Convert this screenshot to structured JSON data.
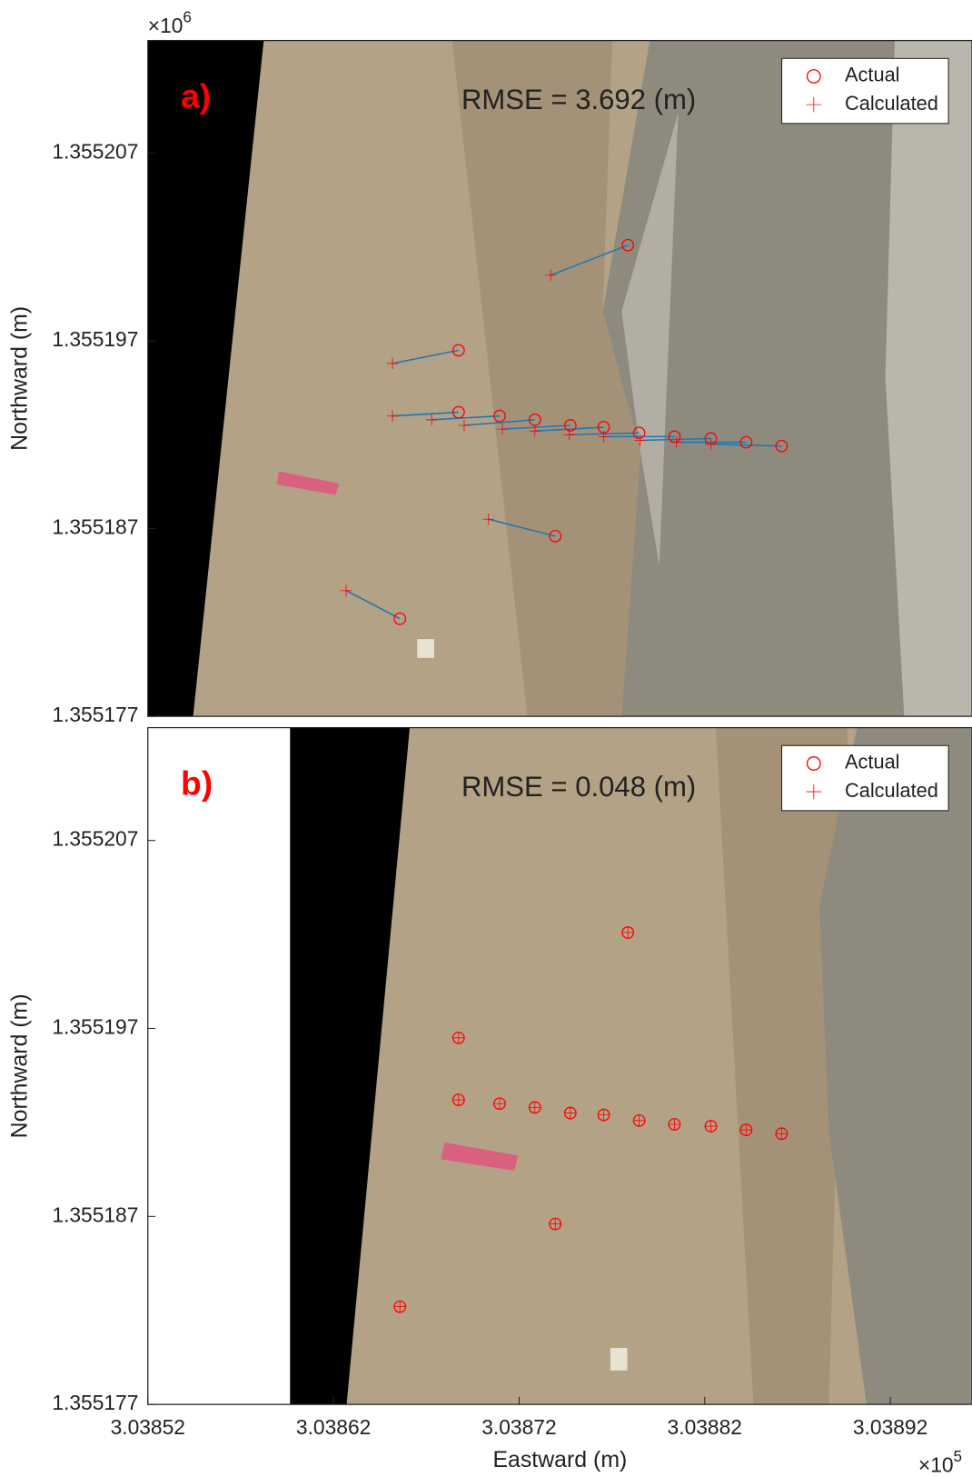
{
  "chart_data": [
    {
      "type": "scatter",
      "panel_label": "a)",
      "title": "RMSE = 3.692 (m)",
      "y_label": "Northward (m)",
      "y_multiplier": {
        "base": "×10",
        "exponent": "6"
      },
      "xlim": [
        3.03852,
        3.038964
      ],
      "ylim": [
        1.355177,
        1.355213
      ],
      "yticks": [
        1.355177,
        1.355187,
        1.355197,
        1.355207
      ],
      "legend": "upper right",
      "error_line_color": "#1f77b4",
      "series": [
        {
          "name": "Actual",
          "color": "#ff0000",
          "marker": "circle",
          "x": [
            3.0387786,
            3.0386874,
            3.0386874,
            3.0387095,
            3.0387285,
            3.0387476,
            3.0387656,
            3.0387847,
            3.0388037,
            3.0388233,
            3.0388423,
            3.0388614,
            3.0387395,
            3.0386558
          ],
          "values": [
            1.3552021,
            1.3551965,
            1.3551932,
            1.355193,
            1.3551928,
            1.3551925,
            1.3551924,
            1.3551921,
            1.3551919,
            1.3551918,
            1.3551916,
            1.3551914,
            1.3551866,
            1.3551822
          ]
        },
        {
          "name": "Calculated",
          "color": "#ff0000",
          "marker": "plus",
          "x": [
            3.038737,
            3.0386518,
            3.0386518,
            3.0386729,
            3.0386904,
            3.038711,
            3.0387285,
            3.0387471,
            3.0387656,
            3.0387852,
            3.0388047,
            3.0388233,
            3.0387035,
            3.0386268
          ],
          "values": [
            1.3552005,
            1.3551958,
            1.355193,
            1.3551928,
            1.3551925,
            1.3551923,
            1.3551922,
            1.355192,
            1.3551919,
            1.3551917,
            1.3551916,
            1.3551915,
            1.3551875,
            1.3551837
          ]
        }
      ]
    },
    {
      "type": "scatter",
      "panel_label": "b)",
      "title": "RMSE = 0.048 (m)",
      "y_label": "Northward (m)",
      "x_label": "Eastward (m)",
      "x_multiplier": {
        "base": "×10",
        "exponent": "5"
      },
      "xlim": [
        3.03852,
        3.038964
      ],
      "ylim": [
        1.355177,
        1.355213
      ],
      "xticks": [
        3.03852,
        3.03862,
        3.03872,
        3.03882,
        3.03892
      ],
      "yticks": [
        1.355177,
        1.355187,
        1.355197,
        1.355207
      ],
      "legend": "upper right",
      "error_line_color": "#1f77b4",
      "series": [
        {
          "name": "Actual",
          "color": "#ff0000",
          "marker": "circle",
          "x": [
            3.0387786,
            3.0386874,
            3.0386874,
            3.0387095,
            3.0387285,
            3.0387476,
            3.0387656,
            3.0387847,
            3.0388037,
            3.0388233,
            3.0388423,
            3.0388614,
            3.0387395,
            3.0386558
          ],
          "values": [
            1.3552021,
            1.3551965,
            1.3551932,
            1.355193,
            1.3551928,
            1.3551925,
            1.3551924,
            1.3551921,
            1.3551919,
            1.3551918,
            1.3551916,
            1.3551914,
            1.3551866,
            1.3551822
          ]
        },
        {
          "name": "Calculated",
          "color": "#ff0000",
          "marker": "plus",
          "x": [
            3.0387786,
            3.0386874,
            3.0386874,
            3.0387095,
            3.0387285,
            3.0387476,
            3.0387656,
            3.0387847,
            3.0388037,
            3.0388233,
            3.0388423,
            3.0388614,
            3.0387395,
            3.0386558
          ],
          "values": [
            1.3552021,
            1.3551965,
            1.3551932,
            1.355193,
            1.3551928,
            1.3551925,
            1.3551924,
            1.3551921,
            1.3551919,
            1.3551918,
            1.3551916,
            1.3551914,
            1.3551866,
            1.3551822
          ]
        }
      ]
    }
  ]
}
